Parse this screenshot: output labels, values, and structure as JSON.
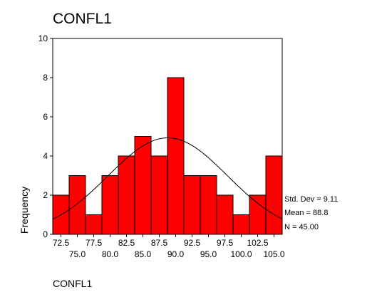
{
  "chart_data": {
    "type": "bar",
    "title": "CONFL1",
    "xlabel": "CONFL1",
    "ylabel": "Frequency",
    "ylim": [
      0,
      10
    ],
    "y_ticks": [
      "0",
      "2",
      "4",
      "6",
      "8",
      "10"
    ],
    "bin_width": 2.5,
    "categories": [
      "72.5",
      "75.0",
      "77.5",
      "80.0",
      "82.5",
      "85.0",
      "87.5",
      "90.0",
      "92.5",
      "95.0",
      "97.5",
      "100.0",
      "102.5",
      "105.0"
    ],
    "values": [
      2,
      3,
      1,
      3,
      4,
      5,
      4,
      8,
      3,
      3,
      2,
      1,
      2,
      4
    ],
    "normal_curve": {
      "mean": 88.8,
      "std_dev": 9.11,
      "n": 45
    },
    "grid": false,
    "bar_color": "#ff0000",
    "bar_edge_color": "#000000",
    "stats": {
      "std_dev_label": "Std. Dev = 9.11",
      "mean_label": "Mean = 88.8",
      "n_label": "N = 45.00"
    }
  }
}
